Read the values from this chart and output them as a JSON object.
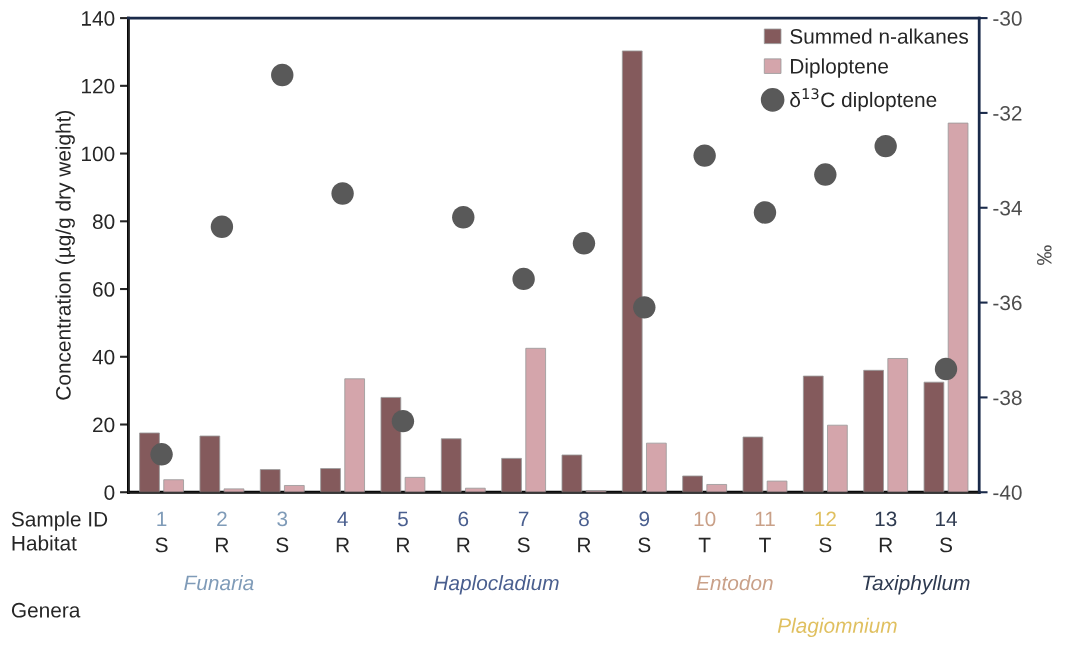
{
  "chart_data": {
    "type": "bar",
    "ylabel": "Concentration (µg/g dry weight)",
    "y2label": "‰",
    "categories": [
      "1",
      "2",
      "3",
      "4",
      "5",
      "6",
      "7",
      "8",
      "9",
      "10",
      "11",
      "12",
      "13",
      "14"
    ],
    "series": [
      {
        "name": "Summed n-alkanes",
        "color": "#845a5c",
        "values": [
          17.5,
          16.6,
          6.7,
          7,
          28,
          15.8,
          10,
          11,
          130.3,
          4.8,
          16.3,
          34.3,
          36,
          32.5
        ]
      },
      {
        "name": "Diploptene",
        "color": "#d4a5ab",
        "values": [
          3.7,
          1,
          2,
          33.5,
          4.4,
          1.2,
          42.5,
          0.5,
          14.5,
          2.3,
          3.3,
          19.8,
          39.5,
          109
        ]
      },
      {
        "name": "δ$^{13}$C diploptene",
        "type": "scatter",
        "axis": "y2",
        "color": "#595959",
        "marker": "circle",
        "values": [
          -39.2,
          -34.4,
          -31.2,
          -33.7,
          -38.5,
          -34.2,
          -35.5,
          -34.75,
          -36.1,
          -32.9,
          -34.1,
          -33.3,
          -32.7,
          -37.4
        ]
      }
    ],
    "ylim": [
      0,
      140
    ],
    "yticks": [
      0,
      20,
      40,
      60,
      80,
      100,
      120,
      140
    ],
    "y2lim": [
      -40,
      -30
    ],
    "y2ticks": [
      -40,
      -38,
      -36,
      -34,
      -32,
      -30
    ],
    "grid": false,
    "legend": "top right",
    "annotations": [
      "Sample ID",
      "Habitat",
      "Genera",
      "S",
      "R",
      "S",
      "R",
      "R",
      "R",
      "S",
      "R",
      "S",
      "T",
      "T",
      "S",
      "R",
      "S",
      "Funaria",
      "Haplocladium",
      "Entodon",
      "Taxiphyllum",
      "Plagiomnium"
    ]
  }
}
